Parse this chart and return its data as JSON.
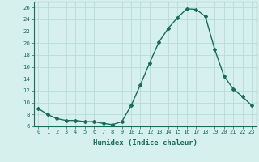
{
  "x": [
    0,
    1,
    2,
    3,
    4,
    5,
    6,
    7,
    8,
    9,
    10,
    11,
    12,
    13,
    14,
    15,
    16,
    17,
    18,
    19,
    20,
    21,
    22,
    23
  ],
  "y": [
    9.0,
    8.0,
    7.3,
    7.0,
    7.0,
    6.8,
    6.8,
    6.5,
    6.3,
    6.8,
    9.5,
    13.0,
    16.7,
    20.2,
    22.5,
    24.3,
    25.8,
    25.7,
    24.5,
    19.0,
    14.5,
    12.3,
    11.0,
    9.5
  ],
  "line_color": "#1a6b5a",
  "marker": "D",
  "marker_size": 2.0,
  "bg_color": "#d6f0ee",
  "grid_color": "#b0d8d4",
  "xlabel": "Humidex (Indice chaleur)",
  "ylim": [
    6,
    27
  ],
  "xlim": [
    -0.5,
    23.5
  ],
  "yticks": [
    6,
    8,
    10,
    12,
    14,
    16,
    18,
    20,
    22,
    24,
    26
  ],
  "xticks": [
    0,
    1,
    2,
    3,
    4,
    5,
    6,
    7,
    8,
    9,
    10,
    11,
    12,
    13,
    14,
    15,
    16,
    17,
    18,
    19,
    20,
    21,
    22,
    23
  ],
  "tick_fontsize": 5.0,
  "xlabel_fontsize": 6.5,
  "linewidth": 1.0
}
